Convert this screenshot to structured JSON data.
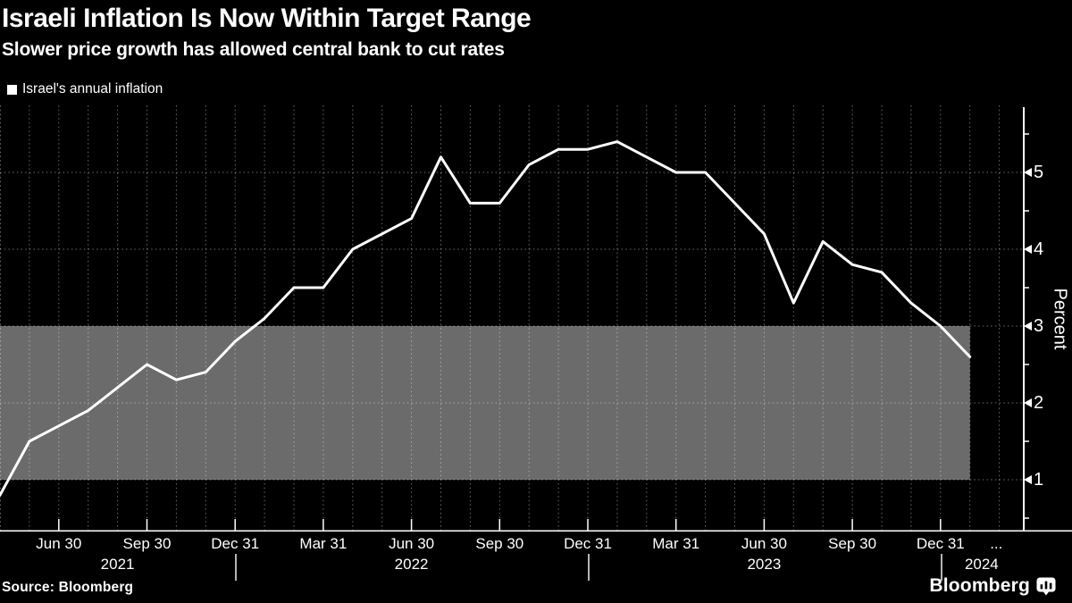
{
  "header": {
    "title": "Israeli Inflation Is Now Within Target Range",
    "subtitle": "Slower price growth has allowed central bank to cut rates"
  },
  "legend": {
    "label": "Israel's annual inflation"
  },
  "chart_data": {
    "type": "line",
    "title": "Israeli Inflation Is Now Within Target Range",
    "subtitle": "Slower price growth has allowed central bank to cut rates",
    "ylabel": "Percent",
    "ylim": [
      0.4,
      5.9
    ],
    "grid": "dotted",
    "legend_position": "top-left",
    "series": [
      {
        "name": "Israel's annual inflation",
        "x": [
          "Apr 2021",
          "May 2021",
          "Jun 2021",
          "Jul 2021",
          "Aug 2021",
          "Sep 2021",
          "Oct 2021",
          "Nov 2021",
          "Dec 2021",
          "Jan 2022",
          "Feb 2022",
          "Mar 2022",
          "Apr 2022",
          "May 2022",
          "Jun 2022",
          "Jul 2022",
          "Aug 2022",
          "Sep 2022",
          "Oct 2022",
          "Nov 2022",
          "Dec 2022",
          "Jan 2023",
          "Feb 2023",
          "Mar 2023",
          "Apr 2023",
          "May 2023",
          "Jun 2023",
          "Jul 2023",
          "Aug 2023",
          "Sep 2023",
          "Oct 2023",
          "Nov 2023",
          "Dec 2023",
          "Jan 2024"
        ],
        "values": [
          0.8,
          1.5,
          1.7,
          1.9,
          2.2,
          2.5,
          2.3,
          2.4,
          2.8,
          3.1,
          3.5,
          3.5,
          4.0,
          4.2,
          4.4,
          5.2,
          4.6,
          4.6,
          5.1,
          5.3,
          5.3,
          5.4,
          5.2,
          5.0,
          5.0,
          4.6,
          4.2,
          3.3,
          4.1,
          3.8,
          3.7,
          3.3,
          3.0,
          2.6
        ]
      }
    ],
    "target_band": {
      "low": 1,
      "high": 3
    },
    "y_ticks": [
      {
        "label": "5",
        "v": 5
      },
      {
        "label": "4",
        "v": 4
      },
      {
        "label": "3",
        "v": 3
      },
      {
        "label": "2",
        "v": 2
      },
      {
        "label": "1",
        "v": 1
      }
    ],
    "y_minor_ticks": [
      0.5,
      1.5,
      2.5,
      3.5,
      4.5,
      5.5
    ],
    "x_ticks": [
      {
        "label": "Jun 30",
        "m": 2
      },
      {
        "label": "Sep 30",
        "m": 5
      },
      {
        "label": "Dec 31",
        "m": 8
      },
      {
        "label": "Mar 31",
        "m": 11
      },
      {
        "label": "Jun 30",
        "m": 14
      },
      {
        "label": "Sep 30",
        "m": 17
      },
      {
        "label": "Dec 31",
        "m": 20
      },
      {
        "label": "Mar 31",
        "m": 23
      },
      {
        "label": "Jun 30",
        "m": 26
      },
      {
        "label": "Sep 30",
        "m": 29
      },
      {
        "label": "Dec 31",
        "m": 32
      },
      {
        "label": "...",
        "m": 33.9,
        "tick": false
      }
    ],
    "year_labels": [
      {
        "label": "2021",
        "m": 4
      },
      {
        "label": "2022",
        "m": 14
      },
      {
        "label": "2023",
        "m": 26
      },
      {
        "label": "2024",
        "m": 33.4
      }
    ],
    "year_divider_months": [
      8,
      20,
      32
    ]
  },
  "footer": {
    "source": "Source: Bloomberg",
    "brand": "Bloomberg",
    "brand_icon": "bloomberg-terminal-icon"
  },
  "colors": {
    "background": "#000000",
    "text": "#ffffff",
    "line": "#ffffff",
    "band": "#6b6b6b",
    "grid": "rgba(255,255,255,0.42)",
    "axis": "#ffffff"
  }
}
